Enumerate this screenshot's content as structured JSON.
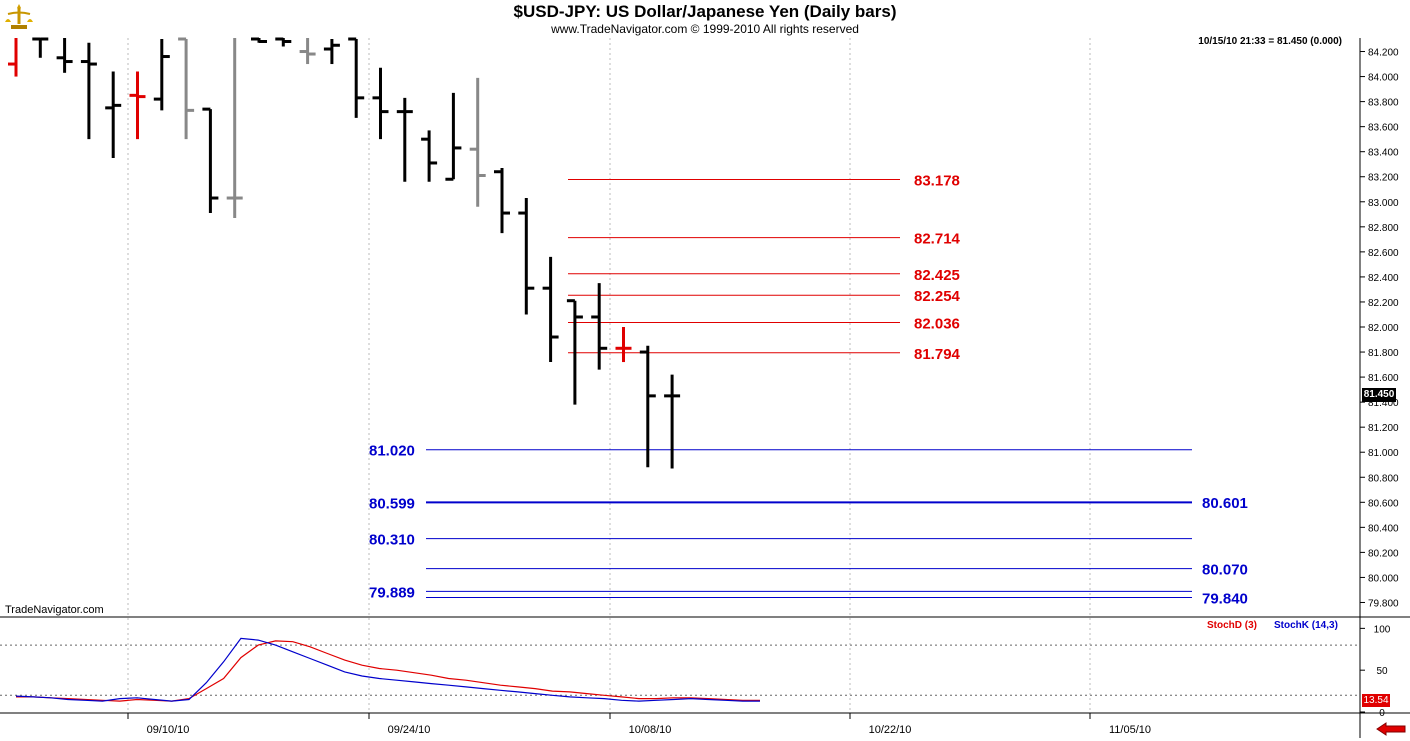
{
  "header": {
    "title": "$USD-JPY:  US Dollar/Japanese Yen  (Daily bars)",
    "subtitle": "www.TradeNavigator.com © 1999-2010 All rights reserved",
    "readout": "10/15/10 21:33 = 81.450 (0.000)",
    "watermark": "TradeNavigator.com",
    "logo_icon": "trade-navigator-logo-icon"
  },
  "tags": {
    "last_price": "81.450",
    "stoch_value": "13.54"
  },
  "colors": {
    "up_bar": "#000000",
    "gray_bar": "#888888",
    "red_bar": "#e00000",
    "fib_red": "#e00000",
    "fib_blue": "#0000cc",
    "stoch_d": "#e00000",
    "stoch_k": "#0000cc"
  },
  "chart_data": [
    {
      "type": "ohlc",
      "x_labels": [
        "09/10/10",
        "09/24/10",
        "10/08/10",
        "10/22/10",
        "11/05/10"
      ],
      "ylim": [
        79.7,
        84.3
      ],
      "y_ticks": [
        "84.200",
        "84.000",
        "83.800",
        "83.600",
        "83.400",
        "83.200",
        "83.000",
        "82.800",
        "82.600",
        "82.400",
        "82.200",
        "82.000",
        "81.800",
        "81.600",
        "81.400",
        "81.200",
        "81.000",
        "80.800",
        "80.600",
        "80.400",
        "80.200",
        "80.000",
        "79.800"
      ],
      "bars": [
        {
          "o": 84.1,
          "h": 84.5,
          "l": 84.0,
          "c": 84.5,
          "color": "red"
        },
        {
          "o": 84.3,
          "h": 84.4,
          "l": 84.15,
          "c": 84.3,
          "color": "black"
        },
        {
          "o": 84.15,
          "h": 84.4,
          "l": 84.03,
          "c": 84.12,
          "color": "black"
        },
        {
          "o": 84.12,
          "h": 84.27,
          "l": 83.5,
          "c": 84.1,
          "color": "black"
        },
        {
          "o": 83.75,
          "h": 84.04,
          "l": 83.35,
          "c": 83.77,
          "color": "black"
        },
        {
          "o": 83.85,
          "h": 84.04,
          "l": 83.5,
          "c": 83.84,
          "color": "red"
        },
        {
          "o": 83.82,
          "h": 84.3,
          "l": 83.73,
          "c": 84.16,
          "color": "black"
        },
        {
          "o": 84.3,
          "h": 84.3,
          "l": 83.5,
          "c": 83.73,
          "color": "gray"
        },
        {
          "o": 83.74,
          "h": 83.74,
          "l": 82.91,
          "c": 83.03,
          "color": "black"
        },
        {
          "o": 83.03,
          "h": 84.5,
          "l": 82.87,
          "c": 83.03,
          "color": "gray"
        },
        {
          "o": 84.3,
          "h": 84.5,
          "l": 84.27,
          "c": 84.28,
          "color": "black"
        },
        {
          "o": 84.3,
          "h": 84.5,
          "l": 84.24,
          "c": 84.28,
          "color": "black"
        },
        {
          "o": 84.2,
          "h": 84.5,
          "l": 84.1,
          "c": 84.18,
          "color": "gray"
        },
        {
          "o": 84.22,
          "h": 84.3,
          "l": 84.1,
          "c": 84.25,
          "color": "black"
        },
        {
          "o": 84.3,
          "h": 84.3,
          "l": 83.67,
          "c": 83.83,
          "color": "black"
        },
        {
          "o": 83.83,
          "h": 84.07,
          "l": 83.5,
          "c": 83.72,
          "color": "black"
        },
        {
          "o": 83.72,
          "h": 83.83,
          "l": 83.16,
          "c": 83.72,
          "color": "black"
        },
        {
          "o": 83.5,
          "h": 83.57,
          "l": 83.16,
          "c": 83.31,
          "color": "black"
        },
        {
          "o": 83.18,
          "h": 83.87,
          "l": 83.18,
          "c": 83.43,
          "color": "black"
        },
        {
          "o": 83.42,
          "h": 83.99,
          "l": 82.96,
          "c": 83.21,
          "color": "gray"
        },
        {
          "o": 83.24,
          "h": 83.27,
          "l": 82.75,
          "c": 82.91,
          "color": "black"
        },
        {
          "o": 82.91,
          "h": 83.03,
          "l": 82.1,
          "c": 82.31,
          "color": "black"
        },
        {
          "o": 82.31,
          "h": 82.56,
          "l": 81.72,
          "c": 81.92,
          "color": "black"
        },
        {
          "o": 82.21,
          "h": 82.21,
          "l": 81.38,
          "c": 82.08,
          "color": "black"
        },
        {
          "o": 82.08,
          "h": 82.35,
          "l": 81.66,
          "c": 81.83,
          "color": "black"
        },
        {
          "o": 81.83,
          "h": 82.0,
          "l": 81.72,
          "c": 81.83,
          "color": "red"
        },
        {
          "o": 81.8,
          "h": 81.85,
          "l": 80.88,
          "c": 81.45,
          "color": "black"
        },
        {
          "o": 81.45,
          "h": 81.62,
          "l": 80.87,
          "c": 81.45,
          "color": "black"
        }
      ],
      "fib_levels_red": [
        {
          "label": "83.178",
          "value": 83.178
        },
        {
          "label": "82.714",
          "value": 82.714
        },
        {
          "label": "82.425",
          "value": 82.425
        },
        {
          "label": "82.254",
          "value": 82.254
        },
        {
          "label": "82.036",
          "value": 82.036
        },
        {
          "label": "81.794",
          "value": 81.794
        }
      ],
      "fib_levels_blue": [
        {
          "label": "81.020",
          "value": 81.02,
          "side": "left"
        },
        {
          "label": "80.599",
          "value": 80.599,
          "side": "left",
          "thick": true
        },
        {
          "label": "80.601",
          "value": 80.601,
          "side": "right",
          "line": false
        },
        {
          "label": "80.310",
          "value": 80.31,
          "side": "left"
        },
        {
          "label": "80.070",
          "value": 80.07,
          "side": "right"
        },
        {
          "label": "79.889",
          "value": 79.889,
          "side": "left"
        },
        {
          "label": "79.840",
          "value": 79.84,
          "side": "right"
        }
      ]
    },
    {
      "type": "line",
      "title": "",
      "ylim": [
        0,
        110
      ],
      "y_ticks": [
        "100",
        "50",
        "0"
      ],
      "series": [
        {
          "name": "StochD (3)",
          "color": "red",
          "values": [
            18,
            18,
            17,
            16,
            15,
            14,
            13,
            15,
            14,
            13,
            16,
            28,
            40,
            65,
            80,
            85,
            84,
            78,
            70,
            62,
            56,
            52,
            50,
            47,
            44,
            40,
            38,
            35,
            32,
            30,
            28,
            25,
            24,
            22,
            20,
            18,
            16,
            16,
            17,
            17,
            16,
            15,
            14,
            14
          ]
        },
        {
          "name": "StochK (14,3)",
          "color": "blue",
          "values": [
            19,
            18,
            17,
            15,
            14,
            13,
            16,
            17,
            15,
            13,
            15,
            35,
            60,
            88,
            86,
            80,
            72,
            64,
            56,
            48,
            43,
            40,
            38,
            36,
            34,
            32,
            30,
            28,
            26,
            24,
            22,
            20,
            18,
            17,
            16,
            14,
            13,
            14,
            15,
            16,
            15,
            14,
            13,
            13
          ]
        }
      ]
    }
  ]
}
